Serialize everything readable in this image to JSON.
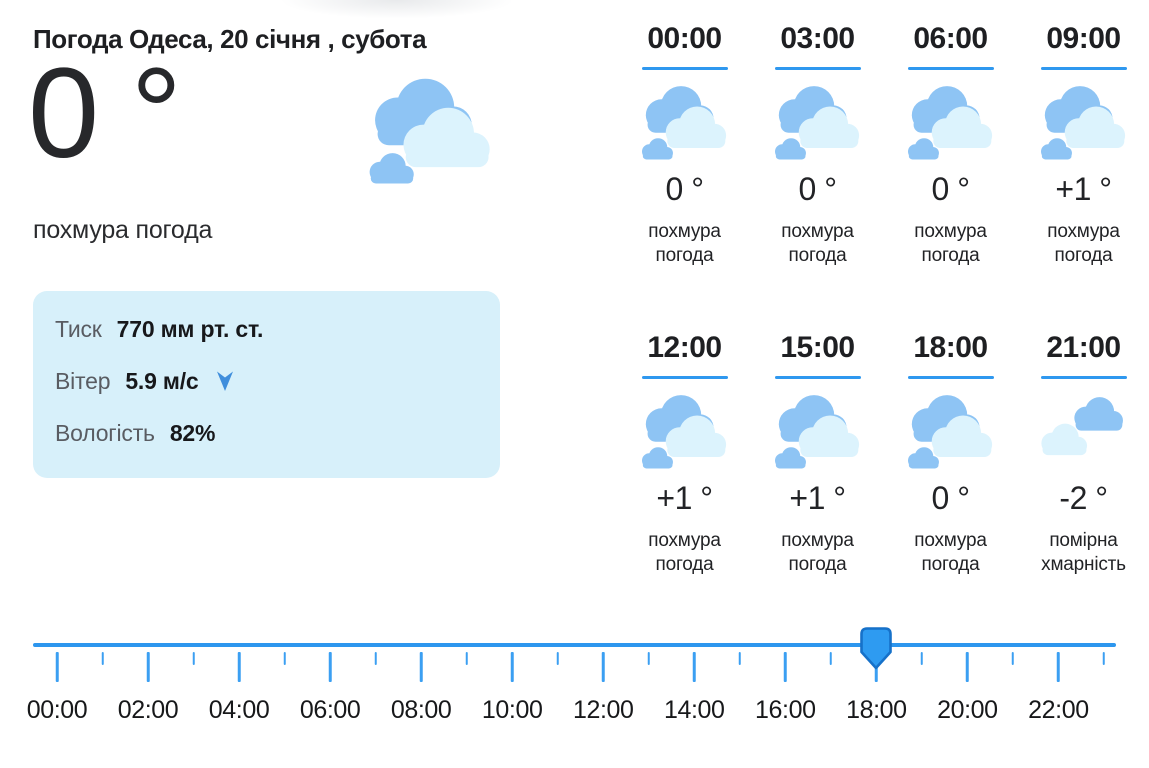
{
  "header": {
    "title": "Погода Одеса, 20 січня , субота"
  },
  "current": {
    "temperature": "0 °",
    "condition": "похмура погода",
    "icon": "overcast"
  },
  "details": {
    "rows": [
      {
        "label": "Тиск",
        "value": "770 мм рт. ст."
      },
      {
        "label": "Вітер",
        "value": "5.9 м/с",
        "icon": "wind-direction-down-arrow"
      },
      {
        "label": "Вологість",
        "value": "82%"
      }
    ]
  },
  "hourly": {
    "cells": [
      {
        "time": "00:00",
        "temp": "0 °",
        "desc": "похмура погода",
        "icon": "overcast"
      },
      {
        "time": "03:00",
        "temp": "0 °",
        "desc": "похмура погода",
        "icon": "overcast"
      },
      {
        "time": "06:00",
        "temp": "0 °",
        "desc": "похмура погода",
        "icon": "overcast"
      },
      {
        "time": "09:00",
        "temp": "+1 °",
        "desc": "похмура погода",
        "icon": "overcast"
      },
      {
        "time": "12:00",
        "temp": "+1 °",
        "desc": "похмура погода",
        "icon": "overcast"
      },
      {
        "time": "15:00",
        "temp": "+1 °",
        "desc": "похмура погода",
        "icon": "overcast"
      },
      {
        "time": "18:00",
        "temp": "0 °",
        "desc": "похмура погода",
        "icon": "overcast"
      },
      {
        "time": "21:00",
        "temp": "-2 °",
        "desc": "помірна хмарність",
        "icon": "partly-cloudy"
      }
    ]
  },
  "slider": {
    "hour_labels": [
      "00:00",
      "02:00",
      "04:00",
      "06:00",
      "08:00",
      "10:00",
      "12:00",
      "14:00",
      "16:00",
      "18:00",
      "20:00",
      "22:00"
    ],
    "selected_hour": "18:00",
    "tick_count": 24
  },
  "colors": {
    "accent_blue": "#2d96ee",
    "tick_blue": "#3b9ff2",
    "handle_fill": "#2e9bf1",
    "handle_border": "#1671c9",
    "cloud_blue": "#8ec4f4",
    "cloud_light": "#dcf3fd",
    "card_background": "#d7f0fa",
    "label_gray": "#595c62",
    "text_dark": "#1c1d1f"
  }
}
